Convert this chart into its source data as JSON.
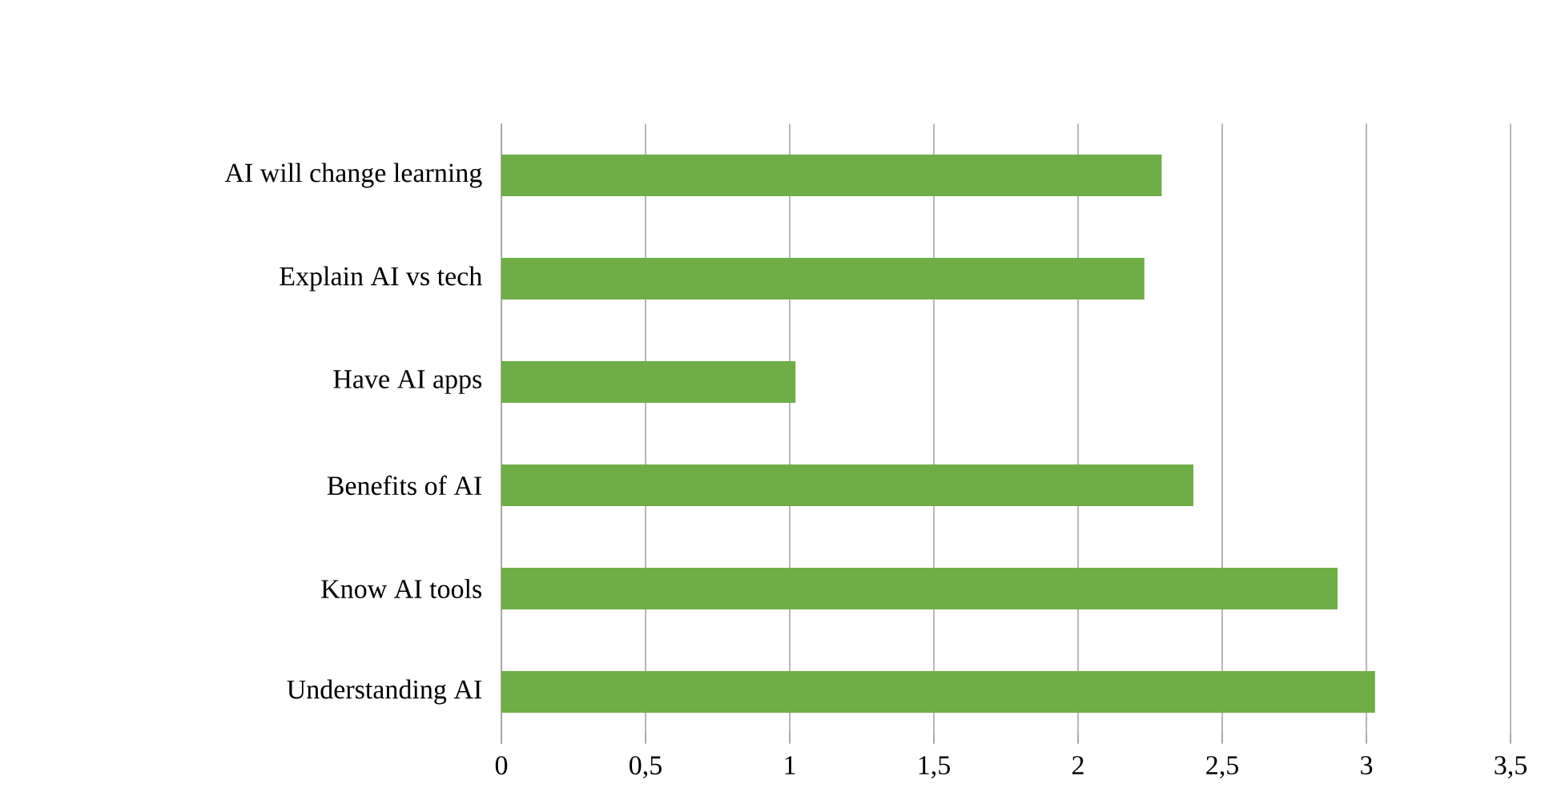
{
  "chart_data": {
    "type": "bar",
    "orientation": "horizontal",
    "categories": [
      "AI will change learning",
      "Explain AI vs tech",
      "Have AI apps",
      "Benefits of AI",
      "Know AI tools",
      "Understanding AI"
    ],
    "values": [
      2.29,
      2.23,
      1.02,
      2.4,
      2.9,
      3.03
    ],
    "color": "#70ad47",
    "xlim": [
      0,
      3.5
    ],
    "xticks": [
      {
        "value": 0,
        "label": "0"
      },
      {
        "value": 0.5,
        "label": "0,5"
      },
      {
        "value": 1,
        "label": "1"
      },
      {
        "value": 1.5,
        "label": "1,5"
      },
      {
        "value": 2,
        "label": "2"
      },
      {
        "value": 2.5,
        "label": "2,5"
      },
      {
        "value": 3,
        "label": "3"
      },
      {
        "value": 3.5,
        "label": "3,5"
      }
    ],
    "grid": "x"
  }
}
